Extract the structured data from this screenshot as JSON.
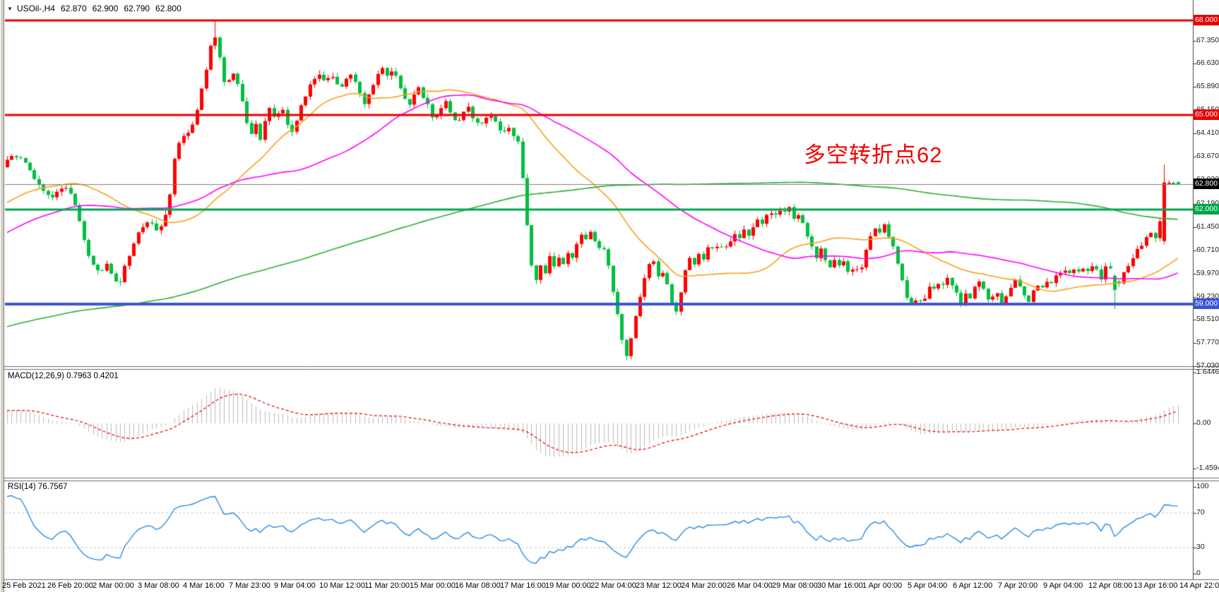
{
  "title": {
    "symbol_timeframe": "USOil-,H4",
    "open": "62.870",
    "high": "62.900",
    "low": "62.790",
    "close": "62.800",
    "collapse_icon": "indicator-collapse-triangle"
  },
  "annotation": {
    "text": "多空转折点62",
    "color": "#f20000"
  },
  "indicators": {
    "macd": {
      "label": "MACD(12,26,9)",
      "values": "0.7963 0.4201",
      "axis": [
        "1.6446",
        "0.00",
        "-1.4594"
      ]
    },
    "rsi": {
      "label": "RSI(14)",
      "value": "76.7567",
      "axis": [
        "100",
        "70",
        "30",
        "0"
      ],
      "levels": [
        70,
        30
      ]
    }
  },
  "price_axis": {
    "ticks": [
      "67.350",
      "66.630",
      "65.890",
      "65.150",
      "64.410",
      "63.670",
      "62.930",
      "62.190",
      "61.450",
      "60.710",
      "59.970",
      "59.230",
      "58.510",
      "57.770",
      "57.030"
    ],
    "badges": [
      {
        "label": "68.000",
        "color": "#e60000",
        "name": "price-badge-resistance-68"
      },
      {
        "label": "65.000",
        "color": "#e60000",
        "name": "price-badge-resistance-65"
      },
      {
        "label": "62.800",
        "color": "#000000",
        "name": "price-badge-current-price"
      },
      {
        "label": "62.000",
        "color": "#00a44c",
        "name": "price-badge-pivot-62"
      },
      {
        "label": "59.000",
        "color": "#3b55d2",
        "name": "price-badge-support-59"
      }
    ]
  },
  "time_axis": {
    "labels": [
      "25 Feb 2021",
      "26 Feb 20:00",
      "2 Mar 00:00",
      "3 Mar 08:00",
      "4 Mar 16:00",
      "7 Mar 23:00",
      "9 Mar 04:00",
      "10 Mar 12:00",
      "11 Mar 20:00",
      "15 Mar 00:00",
      "16 Mar 08:00",
      "17 Mar 16:00",
      "19 Mar 00:00",
      "22 Mar 04:00",
      "23 Mar 12:00",
      "24 Mar 20:00",
      "26 Mar 04:00",
      "29 Mar 08:00",
      "30 Mar 16:00",
      "1 Apr 00:00",
      "5 Apr 04:00",
      "6 Apr 12:00",
      "7 Apr 20:00",
      "9 Apr 04:00",
      "12 Apr 08:00",
      "13 Apr 16:00",
      "14 Apr 22:00"
    ]
  },
  "chart_data": {
    "type": "candlestick-ohlc",
    "symbol": "USOil",
    "timeframe": "H4",
    "color_convention": "red-up-green-down (CN)",
    "visible_range": {
      "start": "25 Feb 2021",
      "end": "14 Apr 22:00"
    },
    "price_range_visible": [
      57.03,
      68.09
    ],
    "current_price": 62.8,
    "last_candle": {
      "open": 62.87,
      "high": 62.9,
      "low": 62.79,
      "close": 62.8
    },
    "hlines": [
      {
        "price": 68.0,
        "color": "#ee0000",
        "width": 3
      },
      {
        "price": 65.0,
        "color": "#ee0000",
        "width": 3
      },
      {
        "price": 62.0,
        "color": "#00a850",
        "width": 3
      },
      {
        "price": 59.0,
        "color": "#3c56d6",
        "width": 4
      }
    ],
    "moving_averages": [
      {
        "period": 34,
        "color": "#f7a21b"
      },
      {
        "period": 60,
        "color": "#ff00ff"
      },
      {
        "period": 200,
        "color": "#2fae2f"
      }
    ],
    "high_of_range": 67.99,
    "low_of_range": 57.22,
    "anchors": [
      [
        8,
        63.5
      ],
      [
        20,
        63.75
      ],
      [
        32,
        63.55
      ],
      [
        46,
        63.1
      ],
      [
        58,
        62.7
      ],
      [
        70,
        62.35
      ],
      [
        82,
        62.6
      ],
      [
        94,
        62.75
      ],
      [
        104,
        62.3
      ],
      [
        112,
        61.6
      ],
      [
        122,
        60.7
      ],
      [
        132,
        60.2
      ],
      [
        142,
        60.05
      ],
      [
        152,
        60.35
      ],
      [
        160,
        59.8
      ],
      [
        168,
        59.62
      ],
      [
        178,
        60.3
      ],
      [
        190,
        61.0
      ],
      [
        202,
        61.45
      ],
      [
        212,
        61.7
      ],
      [
        220,
        61.35
      ],
      [
        230,
        61.6
      ],
      [
        238,
        62.0
      ],
      [
        246,
        63.6
      ],
      [
        254,
        64.1
      ],
      [
        262,
        64.5
      ],
      [
        268,
        64.3
      ],
      [
        276,
        64.9
      ],
      [
        284,
        65.7
      ],
      [
        290,
        66.3
      ],
      [
        296,
        67.0
      ],
      [
        302,
        67.6
      ],
      [
        308,
        67.25
      ],
      [
        314,
        66.4
      ],
      [
        320,
        65.8
      ],
      [
        326,
        66.2
      ],
      [
        332,
        66.35
      ],
      [
        340,
        65.7
      ],
      [
        348,
        64.9
      ],
      [
        356,
        64.3
      ],
      [
        362,
        64.7
      ],
      [
        368,
        64.2
      ],
      [
        374,
        64.8
      ],
      [
        382,
        65.2
      ],
      [
        390,
        64.8
      ],
      [
        398,
        65.3
      ],
      [
        406,
        64.8
      ],
      [
        412,
        64.45
      ],
      [
        420,
        64.9
      ],
      [
        428,
        65.4
      ],
      [
        436,
        65.8
      ],
      [
        444,
        66.1
      ],
      [
        452,
        66.35
      ],
      [
        460,
        66.1
      ],
      [
        468,
        66.35
      ],
      [
        476,
        66.05
      ],
      [
        482,
        65.8
      ],
      [
        490,
        66.1
      ],
      [
        498,
        66.3
      ],
      [
        506,
        65.9
      ],
      [
        512,
        65.55
      ],
      [
        518,
        65.3
      ],
      [
        526,
        65.9
      ],
      [
        534,
        66.3
      ],
      [
        542,
        66.45
      ],
      [
        550,
        66.25
      ],
      [
        556,
        66.4
      ],
      [
        562,
        66.1
      ],
      [
        570,
        65.7
      ],
      [
        578,
        65.2
      ],
      [
        584,
        65.6
      ],
      [
        592,
        65.85
      ],
      [
        600,
        65.5
      ],
      [
        608,
        65.2
      ],
      [
        614,
        64.85
      ],
      [
        622,
        65.2
      ],
      [
        630,
        65.45
      ],
      [
        638,
        65.1
      ],
      [
        646,
        64.75
      ],
      [
        654,
        65.0
      ],
      [
        662,
        65.25
      ],
      [
        670,
        64.9
      ],
      [
        678,
        64.65
      ],
      [
        686,
        64.85
      ],
      [
        694,
        65.05
      ],
      [
        702,
        64.7
      ],
      [
        710,
        64.45
      ],
      [
        718,
        64.65
      ],
      [
        726,
        64.4
      ],
      [
        733,
        64.2
      ],
      [
        739,
        63.2
      ],
      [
        744,
        61.9
      ],
      [
        749,
        60.8
      ],
      [
        754,
        60.0
      ],
      [
        759,
        59.75
      ],
      [
        766,
        60.35
      ],
      [
        772,
        59.95
      ],
      [
        778,
        60.5
      ],
      [
        784,
        60.15
      ],
      [
        790,
        60.55
      ],
      [
        798,
        60.3
      ],
      [
        804,
        60.7
      ],
      [
        810,
        60.45
      ],
      [
        816,
        60.85
      ],
      [
        822,
        61.25
      ],
      [
        828,
        61.0
      ],
      [
        834,
        61.4
      ],
      [
        840,
        61.15
      ],
      [
        846,
        60.7
      ],
      [
        852,
        61.05
      ],
      [
        858,
        60.45
      ],
      [
        864,
        59.9
      ],
      [
        870,
        59.15
      ],
      [
        876,
        58.4
      ],
      [
        882,
        57.7
      ],
      [
        888,
        57.35
      ],
      [
        894,
        57.95
      ],
      [
        900,
        58.6
      ],
      [
        908,
        59.4
      ],
      [
        916,
        60.1
      ],
      [
        922,
        60.5
      ],
      [
        928,
        60.15
      ],
      [
        934,
        59.75
      ],
      [
        940,
        60.1
      ],
      [
        946,
        59.55
      ],
      [
        952,
        58.95
      ],
      [
        958,
        58.7
      ],
      [
        964,
        59.45
      ],
      [
        970,
        60.05
      ],
      [
        976,
        60.45
      ],
      [
        982,
        60.2
      ],
      [
        988,
        60.6
      ],
      [
        994,
        60.3
      ],
      [
        1000,
        60.9
      ],
      [
        1006,
        60.6
      ],
      [
        1012,
        60.95
      ],
      [
        1018,
        60.7
      ],
      [
        1024,
        61.0
      ],
      [
        1030,
        60.75
      ],
      [
        1036,
        61.05
      ],
      [
        1042,
        61.35
      ],
      [
        1048,
        61.1
      ],
      [
        1054,
        61.45
      ],
      [
        1060,
        61.2
      ],
      [
        1066,
        61.5
      ],
      [
        1072,
        61.75
      ],
      [
        1078,
        61.5
      ],
      [
        1084,
        61.8
      ],
      [
        1090,
        62.0
      ],
      [
        1096,
        61.75
      ],
      [
        1102,
        62.05
      ],
      [
        1108,
        61.85
      ],
      [
        1114,
        62.15
      ],
      [
        1120,
        61.9
      ],
      [
        1126,
        61.6
      ],
      [
        1132,
        61.85
      ],
      [
        1138,
        61.5
      ],
      [
        1144,
        61.1
      ],
      [
        1150,
        60.75
      ],
      [
        1156,
        60.4
      ],
      [
        1162,
        60.8
      ],
      [
        1168,
        60.45
      ],
      [
        1174,
        60.1
      ],
      [
        1180,
        60.45
      ],
      [
        1186,
        60.15
      ],
      [
        1192,
        60.5
      ],
      [
        1198,
        60.2
      ],
      [
        1204,
        59.9
      ],
      [
        1210,
        60.25
      ],
      [
        1216,
        59.95
      ],
      [
        1222,
        60.4
      ],
      [
        1228,
        60.85
      ],
      [
        1234,
        61.25
      ],
      [
        1240,
        61.5
      ],
      [
        1246,
        61.3
      ],
      [
        1252,
        61.55
      ],
      [
        1258,
        61.2
      ],
      [
        1264,
        60.8
      ],
      [
        1270,
        60.3
      ],
      [
        1276,
        59.8
      ],
      [
        1282,
        59.3
      ],
      [
        1288,
        59.0
      ],
      [
        1294,
        58.9
      ],
      [
        1300,
        59.3
      ],
      [
        1306,
        59.0
      ],
      [
        1312,
        59.4
      ],
      [
        1318,
        59.7
      ],
      [
        1324,
        59.45
      ],
      [
        1330,
        59.8
      ],
      [
        1336,
        59.55
      ],
      [
        1342,
        59.9
      ],
      [
        1348,
        59.6
      ],
      [
        1354,
        59.3
      ],
      [
        1360,
        59.0
      ],
      [
        1366,
        59.35
      ],
      [
        1372,
        59.15
      ],
      [
        1378,
        59.5
      ],
      [
        1384,
        59.8
      ],
      [
        1390,
        59.55
      ],
      [
        1396,
        59.25
      ],
      [
        1402,
        59.0
      ],
      [
        1408,
        59.4
      ],
      [
        1414,
        59.2
      ],
      [
        1420,
        58.95
      ],
      [
        1426,
        59.3
      ],
      [
        1432,
        59.6
      ],
      [
        1438,
        59.85
      ],
      [
        1444,
        59.6
      ],
      [
        1450,
        59.3
      ],
      [
        1456,
        59.0
      ],
      [
        1462,
        59.35
      ],
      [
        1468,
        59.65
      ],
      [
        1474,
        59.45
      ],
      [
        1480,
        59.75
      ],
      [
        1486,
        59.5
      ],
      [
        1492,
        59.85
      ],
      [
        1498,
        60.1
      ],
      [
        1504,
        59.85
      ],
      [
        1510,
        60.1
      ],
      [
        1516,
        59.9
      ],
      [
        1522,
        60.15
      ],
      [
        1528,
        59.95
      ],
      [
        1534,
        60.2
      ],
      [
        1540,
        60.0
      ],
      [
        1546,
        60.25
      ],
      [
        1552,
        60.05
      ],
      [
        1558,
        59.8
      ],
      [
        1564,
        60.1
      ],
      [
        1570,
        60.3
      ],
      [
        1576,
        59.95
      ],
      [
        1581,
        59.45
      ],
      [
        1586,
        59.75
      ],
      [
        1592,
        60.05
      ],
      [
        1598,
        60.3
      ],
      [
        1604,
        60.5
      ],
      [
        1610,
        60.7
      ],
      [
        1616,
        60.9
      ],
      [
        1622,
        61.1
      ],
      [
        1628,
        61.3
      ],
      [
        1634,
        61.15
      ],
      [
        1640,
        61.0
      ],
      [
        1646,
        62.86
      ],
      [
        1653,
        62.8
      ],
      [
        1660,
        62.85
      ],
      [
        1667,
        62.8
      ]
    ],
    "key_candles": [
      [
        1646,
        61.0,
        63.42,
        60.9,
        62.86
      ],
      [
        1581,
        59.9,
        59.95,
        58.85,
        59.45
      ],
      [
        1668,
        62.87,
        62.9,
        62.79,
        62.8
      ]
    ]
  },
  "colors": {
    "bull_candle": "#fe0000",
    "bear_candle": "#00bf40",
    "macd_histogram": "#bbbbbb",
    "macd_signal": "#e00000",
    "rsi_line": "#2e8be0",
    "current_price_line": "#808080",
    "background": "#ffffff"
  }
}
